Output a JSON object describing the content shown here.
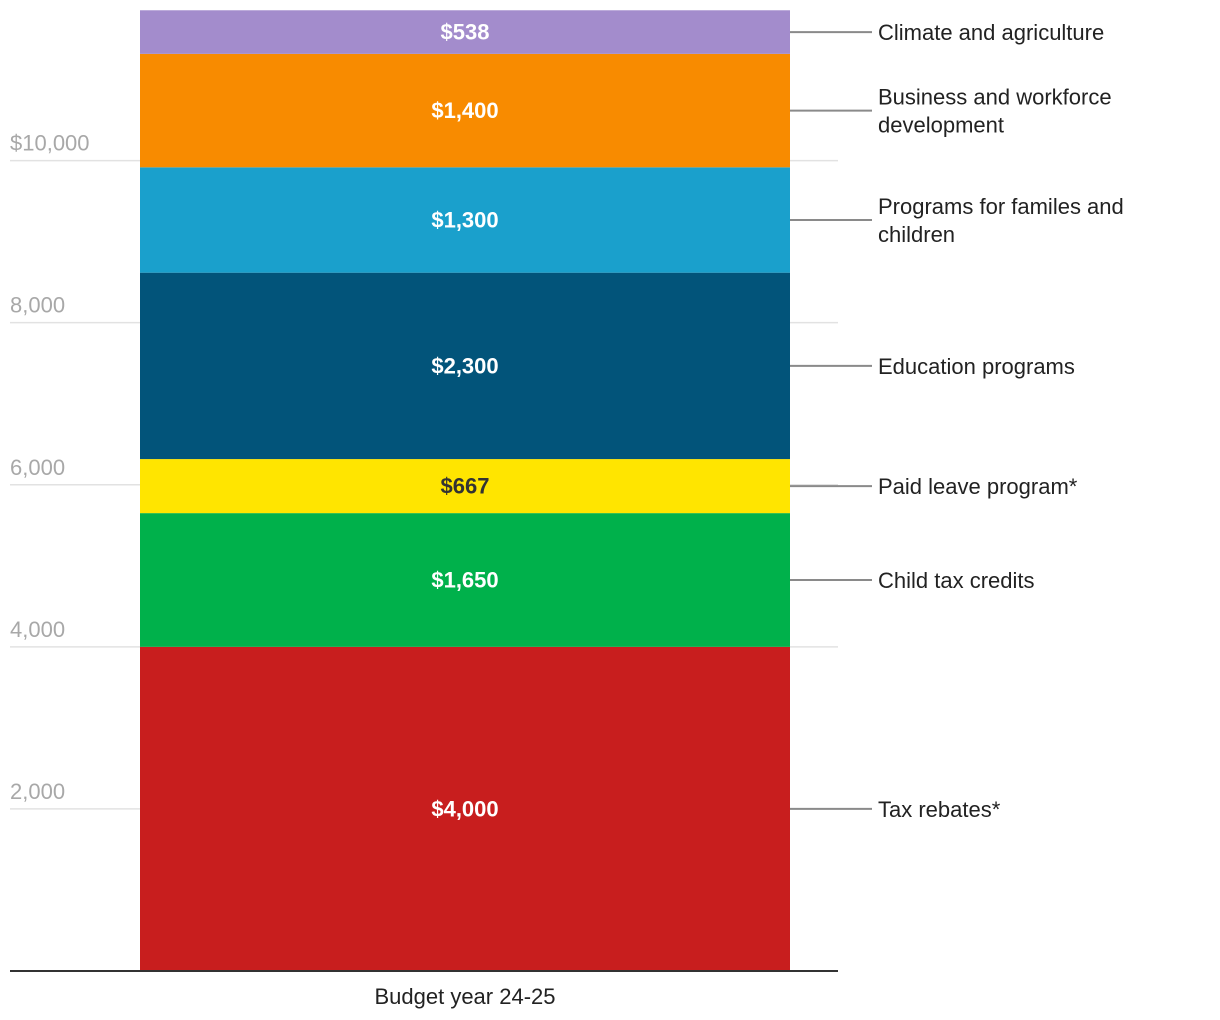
{
  "chart_data": {
    "type": "bar",
    "stacked": true,
    "categories": [
      "Budget year 24-25"
    ],
    "series": [
      {
        "name": "Tax rebates*",
        "values": [
          4000
        ],
        "label": "$4,000",
        "color": "#c81e1e",
        "label_color": "#ffffff"
      },
      {
        "name": "Child tax credits",
        "values": [
          1650
        ],
        "label": "$1,650",
        "color": "#00b14b",
        "label_color": "#ffffff"
      },
      {
        "name": "Paid leave program*",
        "values": [
          667
        ],
        "label": "$667",
        "color": "#ffe500",
        "label_color": "#333333"
      },
      {
        "name": "Education programs",
        "values": [
          2300
        ],
        "label": "$2,300",
        "color": "#02547a",
        "label_color": "#ffffff"
      },
      {
        "name": "Programs for familes and children",
        "values": [
          1300
        ],
        "label": "$1,300",
        "color": "#1aa0cc",
        "label_color": "#ffffff"
      },
      {
        "name": "Business and workforce development",
        "values": [
          1400
        ],
        "label": "$1,400",
        "color": "#f88b00",
        "label_color": "#ffffff"
      },
      {
        "name": "Climate and agriculture",
        "values": [
          538
        ],
        "label": "$538",
        "color": "#a38ccc",
        "label_color": "#ffffff"
      }
    ],
    "yticks": [
      2000,
      4000,
      6000,
      8000,
      10000
    ],
    "ytick_labels": [
      "2,000",
      "4,000",
      "6,000",
      "8,000",
      "$10,000"
    ],
    "ylim": [
      0,
      11855
    ],
    "grid": true,
    "legend": "direct labels right"
  }
}
